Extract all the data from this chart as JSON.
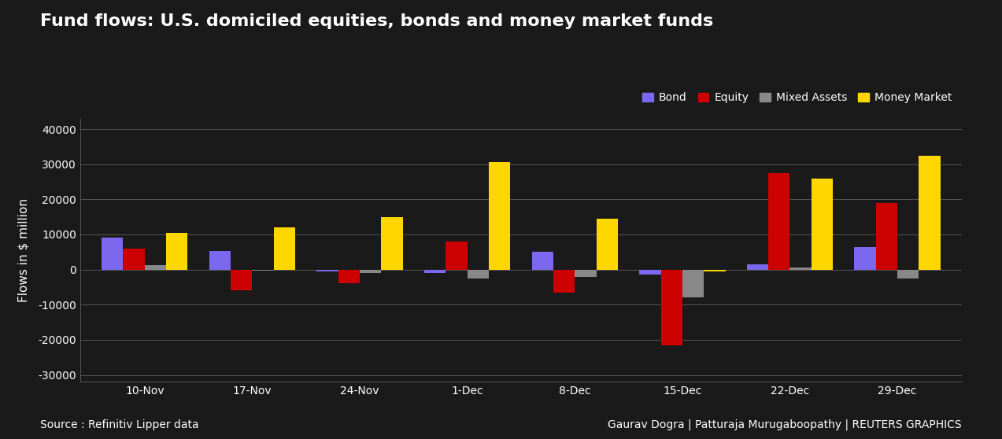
{
  "title": "Fund flows: U.S. domiciled equities, bonds and money market funds",
  "ylabel": "Flows in $ million",
  "source_text": "Source : Refinitiv Lipper data",
  "credit_text": "Gaurav Dogra | Patturaja Murugaboopathy | REUTERS GRAPHICS",
  "categories": [
    "10-Nov",
    "17-Nov",
    "24-Nov",
    "1-Dec",
    "8-Dec",
    "15-Dec",
    "22-Dec",
    "29-Dec"
  ],
  "series": {
    "Bond": [
      9200,
      5200,
      -500,
      -900,
      5000,
      -1500,
      1500,
      6500
    ],
    "Equity": [
      6000,
      -6000,
      -4000,
      8000,
      -6500,
      -21500,
      27500,
      19000
    ],
    "Mixed Assets": [
      1200,
      -200,
      -1000,
      -2500,
      -2000,
      -8000,
      500,
      -2500
    ],
    "Money Market": [
      10500,
      12000,
      15000,
      30500,
      14500,
      -500,
      26000,
      32500
    ]
  },
  "colors": {
    "Bond": "#7B68EE",
    "Equity": "#CC0000",
    "Mixed Assets": "#888888",
    "Money Market": "#FFD700"
  },
  "background_color": "#1a1a1a",
  "plot_background_color": "#1a1a1a",
  "text_color": "#ffffff",
  "grid_color": "#555555",
  "ylim": [
    -32000,
    43000
  ],
  "yticks": [
    -30000,
    -20000,
    -10000,
    0,
    10000,
    20000,
    30000,
    40000
  ],
  "bar_width": 0.2,
  "title_fontsize": 16,
  "axis_fontsize": 11,
  "tick_fontsize": 10,
  "legend_fontsize": 10,
  "source_fontsize": 10,
  "credit_fontsize": 10
}
